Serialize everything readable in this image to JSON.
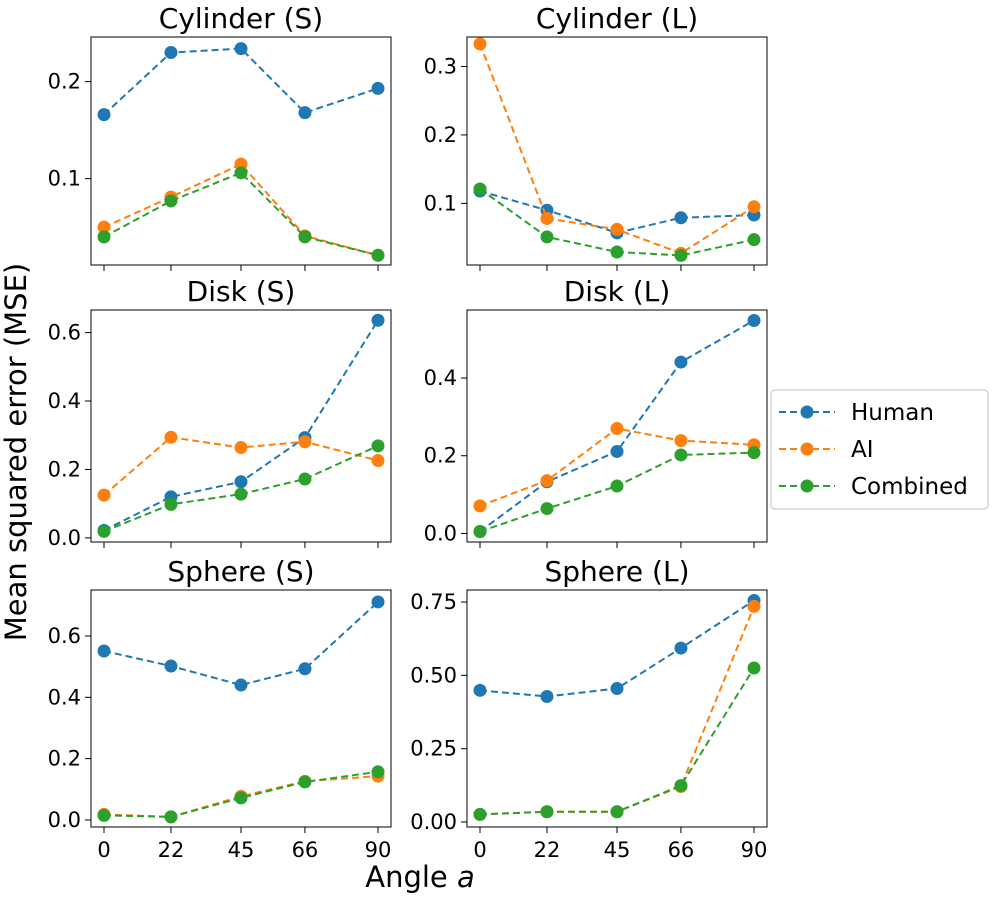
{
  "figure": {
    "ylabel": "Mean squared error (MSE)",
    "xlabel_main": "Angle ",
    "xlabel_var": "a",
    "legend": [
      {
        "label": "Human",
        "color": "#1f77b4"
      },
      {
        "label": "AI",
        "color": "#ff7f0e"
      },
      {
        "label": "Combined",
        "color": "#2ca02c"
      }
    ]
  },
  "chart_data": [
    {
      "type": "line",
      "title": "Cylinder (S)",
      "x": [
        0,
        22,
        45,
        66,
        90
      ],
      "ylim": [
        0.011,
        0.246
      ],
      "yticks": [
        {
          "v": 0.1,
          "label": "0.1"
        },
        {
          "v": 0.2,
          "label": "0.2"
        }
      ],
      "series": [
        {
          "name": "Human",
          "color": "#1f77b4",
          "values": [
            0.166,
            0.23,
            0.234,
            0.168,
            0.193
          ]
        },
        {
          "name": "AI",
          "color": "#ff7f0e",
          "values": [
            0.05,
            0.081,
            0.115,
            0.041,
            0.021
          ]
        },
        {
          "name": "Combined",
          "color": "#2ca02c",
          "values": [
            0.04,
            0.077,
            0.106,
            0.04,
            0.021
          ]
        }
      ]
    },
    {
      "type": "line",
      "title": "Cylinder (L)",
      "x": [
        0,
        22,
        45,
        66,
        90
      ],
      "ylim": [
        0.01,
        0.343
      ],
      "yticks": [
        {
          "v": 0.1,
          "label": "0.1"
        },
        {
          "v": 0.2,
          "label": "0.2"
        },
        {
          "v": 0.3,
          "label": "0.3"
        }
      ],
      "series": [
        {
          "name": "Human",
          "color": "#1f77b4",
          "values": [
            0.118,
            0.09,
            0.057,
            0.079,
            0.083
          ]
        },
        {
          "name": "AI",
          "color": "#ff7f0e",
          "values": [
            0.333,
            0.078,
            0.062,
            0.027,
            0.095
          ]
        },
        {
          "name": "Combined",
          "color": "#2ca02c",
          "values": [
            0.121,
            0.051,
            0.029,
            0.024,
            0.047
          ]
        }
      ]
    },
    {
      "type": "line",
      "title": "Disk (S)",
      "x": [
        0,
        22,
        45,
        66,
        90
      ],
      "ylim": [
        -0.012,
        0.666
      ],
      "yticks": [
        {
          "v": 0.0,
          "label": "0.0"
        },
        {
          "v": 0.2,
          "label": "0.2"
        },
        {
          "v": 0.4,
          "label": "0.4"
        },
        {
          "v": 0.6,
          "label": "0.6"
        }
      ],
      "series": [
        {
          "name": "Human",
          "color": "#1f77b4",
          "values": [
            0.022,
            0.12,
            0.164,
            0.293,
            0.636
          ]
        },
        {
          "name": "AI",
          "color": "#ff7f0e",
          "values": [
            0.125,
            0.294,
            0.264,
            0.281,
            0.226
          ]
        },
        {
          "name": "Combined",
          "color": "#2ca02c",
          "values": [
            0.019,
            0.098,
            0.128,
            0.172,
            0.269
          ]
        }
      ]
    },
    {
      "type": "line",
      "title": "Disk (L)",
      "x": [
        0,
        22,
        45,
        66,
        90
      ],
      "ylim": [
        -0.022,
        0.575
      ],
      "yticks": [
        {
          "v": 0.0,
          "label": "0.0"
        },
        {
          "v": 0.2,
          "label": "0.2"
        },
        {
          "v": 0.4,
          "label": "0.4"
        }
      ],
      "series": [
        {
          "name": "Human",
          "color": "#1f77b4",
          "values": [
            0.005,
            0.133,
            0.211,
            0.441,
            0.548
          ]
        },
        {
          "name": "AI",
          "color": "#ff7f0e",
          "values": [
            0.071,
            0.136,
            0.27,
            0.239,
            0.228
          ]
        },
        {
          "name": "Combined",
          "color": "#2ca02c",
          "values": [
            0.005,
            0.064,
            0.122,
            0.202,
            0.208
          ]
        }
      ]
    },
    {
      "type": "line",
      "title": "Sphere (S)",
      "x": [
        0,
        22,
        45,
        66,
        90
      ],
      "ylim": [
        -0.023,
        0.75
      ],
      "yticks": [
        {
          "v": 0.0,
          "label": "0.0"
        },
        {
          "v": 0.2,
          "label": "0.2"
        },
        {
          "v": 0.4,
          "label": "0.4"
        },
        {
          "v": 0.6,
          "label": "0.6"
        }
      ],
      "series": [
        {
          "name": "Human",
          "color": "#1f77b4",
          "values": [
            0.551,
            0.502,
            0.44,
            0.493,
            0.711
          ]
        },
        {
          "name": "AI",
          "color": "#ff7f0e",
          "values": [
            0.018,
            0.01,
            0.077,
            0.126,
            0.143
          ]
        },
        {
          "name": "Combined",
          "color": "#2ca02c",
          "values": [
            0.015,
            0.01,
            0.072,
            0.124,
            0.157
          ]
        }
      ]
    },
    {
      "type": "line",
      "title": "Sphere (L)",
      "x": [
        0,
        22,
        45,
        66,
        90
      ],
      "ylim": [
        -0.017,
        0.791
      ],
      "yticks": [
        {
          "v": 0.0,
          "label": "0.00"
        },
        {
          "v": 0.25,
          "label": "0.25"
        },
        {
          "v": 0.5,
          "label": "0.50"
        },
        {
          "v": 0.75,
          "label": "0.75"
        }
      ],
      "xticklabels": [
        "0",
        "22",
        "45",
        "66",
        "90"
      ],
      "series": [
        {
          "name": "Human",
          "color": "#1f77b4",
          "values": [
            0.449,
            0.428,
            0.455,
            0.593,
            0.755
          ]
        },
        {
          "name": "AI",
          "color": "#ff7f0e",
          "values": [
            0.026,
            0.035,
            0.035,
            0.121,
            0.735
          ]
        },
        {
          "name": "Combined",
          "color": "#2ca02c",
          "values": [
            0.026,
            0.035,
            0.035,
            0.124,
            0.525
          ]
        }
      ]
    }
  ]
}
